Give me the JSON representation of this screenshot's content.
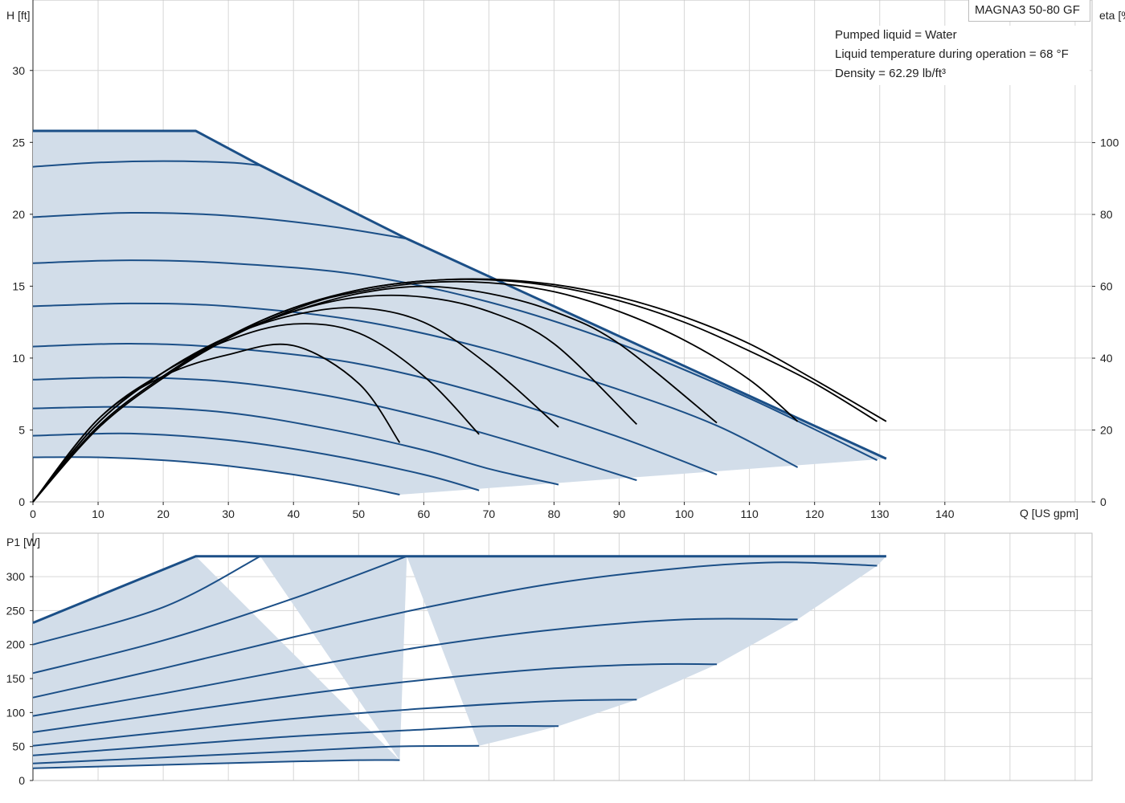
{
  "model_label": "MAGNA3 50-80 GF",
  "notes": {
    "line1": "Pumped liquid = Water",
    "line2": "Liquid temperature during operation = 68 °F",
    "line3": "Density = 62.29 lb/ft³"
  },
  "colors": {
    "curve": "#1b4f87",
    "fill": "#d2dde9",
    "efficiency": "#000000",
    "grid": "#d6d6d6",
    "frame": "#bdbdbd"
  },
  "chart_data": [
    {
      "type": "line",
      "title": "",
      "xlabel": "Q [US gpm]",
      "ylabel": "H [ft]",
      "ylabel_right": "eta [%]",
      "xlim": [
        0,
        162.6
      ],
      "ylim": [
        0,
        34.9
      ],
      "y2lim": [
        0,
        139.7
      ],
      "x_ticks": [
        0,
        10,
        20,
        30,
        40,
        50,
        60,
        70,
        80,
        90,
        100,
        110,
        120,
        130,
        140
      ],
      "y_ticks": [
        0,
        5,
        10,
        15,
        20,
        25,
        30
      ],
      "y2_ticks": [
        0,
        20,
        40,
        60,
        80,
        100
      ],
      "grid": true,
      "head_envelope_max": [
        [
          0,
          25.8
        ],
        [
          25,
          25.8
        ],
        [
          34.9,
          23.4
        ],
        [
          57.4,
          18.3
        ],
        [
          131,
          3.0
        ]
      ],
      "head_min_curve": [
        [
          0,
          3.1
        ],
        [
          10,
          3.1
        ],
        [
          20,
          2.9
        ],
        [
          30,
          2.5
        ],
        [
          40,
          1.9
        ],
        [
          50,
          1.1
        ],
        [
          56.3,
          0.5
        ]
      ],
      "head_series": [
        {
          "values": [
            [
              0,
              3.1
            ],
            [
              10,
              3.1
            ],
            [
              20,
              2.9
            ],
            [
              30,
              2.5
            ],
            [
              40,
              1.9
            ],
            [
              50,
              1.1
            ],
            [
              56.3,
              0.5
            ]
          ]
        },
        {
          "values": [
            [
              0,
              4.6
            ],
            [
              15,
              4.75
            ],
            [
              30,
              4.3
            ],
            [
              45,
              3.3
            ],
            [
              60,
              1.9
            ],
            [
              68.5,
              0.8
            ]
          ]
        },
        {
          "values": [
            [
              0,
              6.5
            ],
            [
              15,
              6.6
            ],
            [
              30,
              6.2
            ],
            [
              45,
              5.1
            ],
            [
              60,
              3.6
            ],
            [
              70,
              2.3
            ],
            [
              80.7,
              1.2
            ]
          ]
        },
        {
          "values": [
            [
              0,
              8.5
            ],
            [
              15,
              8.65
            ],
            [
              30,
              8.35
            ],
            [
              45,
              7.4
            ],
            [
              60,
              5.9
            ],
            [
              75,
              4.0
            ],
            [
              92.7,
              1.5
            ]
          ]
        },
        {
          "values": [
            [
              0,
              10.8
            ],
            [
              15,
              11.0
            ],
            [
              30,
              10.7
            ],
            [
              50,
              9.6
            ],
            [
              70,
              7.4
            ],
            [
              90,
              4.5
            ],
            [
              105,
              1.9
            ]
          ]
        },
        {
          "values": [
            [
              0,
              13.6
            ],
            [
              15,
              13.8
            ],
            [
              30,
              13.6
            ],
            [
              50,
              12.6
            ],
            [
              70,
              10.6
            ],
            [
              90,
              7.8
            ],
            [
              105,
              5.3
            ],
            [
              117.4,
              2.4
            ]
          ]
        },
        {
          "values": [
            [
              0,
              16.6
            ],
            [
              15,
              16.8
            ],
            [
              30,
              16.6
            ],
            [
              50,
              15.8
            ],
            [
              70,
              13.9
            ],
            [
              90,
              11.0
            ],
            [
              110,
              7.2
            ],
            [
              129.6,
              2.9
            ]
          ]
        },
        {
          "values": [
            [
              0,
              19.8
            ],
            [
              15,
              20.1
            ],
            [
              30,
              19.9
            ],
            [
              45,
              19.2
            ],
            [
              57.4,
              18.3
            ]
          ]
        },
        {
          "values": [
            [
              0,
              23.3
            ],
            [
              10,
              23.6
            ],
            [
              20,
              23.7
            ],
            [
              30,
              23.6
            ],
            [
              34.9,
              23.4
            ]
          ]
        }
      ],
      "efficiency_series": [
        {
          "values": [
            [
              0,
              0
            ],
            [
              10,
              23
            ],
            [
              20,
              35
            ],
            [
              30,
              41
            ],
            [
              40,
              43.5
            ],
            [
              50,
              33
            ],
            [
              56.3,
              16.5
            ]
          ]
        },
        {
          "values": [
            [
              0,
              0
            ],
            [
              10,
              23
            ],
            [
              20,
              36
            ],
            [
              30,
              45
            ],
            [
              40,
              49.5
            ],
            [
              50,
              47
            ],
            [
              60,
              35
            ],
            [
              68.5,
              18.8
            ]
          ]
        },
        {
          "values": [
            [
              0,
              0
            ],
            [
              10,
              22
            ],
            [
              20,
              36
            ],
            [
              30,
              46
            ],
            [
              40,
              52
            ],
            [
              50,
              54
            ],
            [
              60,
              50
            ],
            [
              70,
              38
            ],
            [
              80.7,
              20.8
            ]
          ]
        },
        {
          "values": [
            [
              0,
              0
            ],
            [
              10,
              22
            ],
            [
              20,
              36
            ],
            [
              30,
              46
            ],
            [
              40,
              53
            ],
            [
              50,
              57
            ],
            [
              60,
              57
            ],
            [
              70,
              53
            ],
            [
              80,
              44
            ],
            [
              92.7,
              21.6
            ]
          ]
        },
        {
          "values": [
            [
              0,
              0
            ],
            [
              10,
              22
            ],
            [
              20,
              36
            ],
            [
              30,
              46
            ],
            [
              40,
              53
            ],
            [
              50,
              58
            ],
            [
              60,
              60
            ],
            [
              70,
              58
            ],
            [
              80,
              53
            ],
            [
              90,
              44
            ],
            [
              105,
              22.0
            ]
          ]
        },
        {
          "values": [
            [
              0,
              0
            ],
            [
              10,
              21
            ],
            [
              20,
              35
            ],
            [
              30,
              46
            ],
            [
              40,
              54
            ],
            [
              50,
              58.5
            ],
            [
              60,
              61
            ],
            [
              70,
              61
            ],
            [
              80,
              58.5
            ],
            [
              90,
              53
            ],
            [
              100,
              45
            ],
            [
              110,
              34
            ],
            [
              117.4,
              22.4
            ]
          ]
        },
        {
          "values": [
            [
              0,
              0
            ],
            [
              10,
              21
            ],
            [
              20,
              35
            ],
            [
              30,
              46
            ],
            [
              40,
              54
            ],
            [
              50,
              59
            ],
            [
              60,
              61.5
            ],
            [
              70,
              61.8
            ],
            [
              80,
              60
            ],
            [
              90,
              56
            ],
            [
              100,
              50
            ],
            [
              110,
              42
            ],
            [
              120,
              33
            ],
            [
              129.6,
              22.4
            ]
          ]
        },
        {
          "values": [
            [
              0,
              0
            ],
            [
              10,
              20.5
            ],
            [
              20,
              34.5
            ],
            [
              30,
              45.5
            ],
            [
              40,
              53.5
            ],
            [
              50,
              59
            ],
            [
              60,
              61.5
            ],
            [
              70,
              62
            ],
            [
              80,
              60.5
            ],
            [
              90,
              57
            ],
            [
              100,
              51.5
            ],
            [
              110,
              44
            ],
            [
              120,
              34
            ],
            [
              131,
              22.4
            ]
          ]
        }
      ]
    },
    {
      "type": "line",
      "title": "",
      "xlabel": "",
      "ylabel": "P1 [W]",
      "xlim": [
        0,
        162.6
      ],
      "ylim": [
        0,
        363.9
      ],
      "y_ticks": [
        0,
        50,
        100,
        150,
        200,
        250,
        300
      ],
      "grid": true,
      "power_envelope_max": [
        [
          0,
          232
        ],
        [
          25,
          330
        ],
        [
          131,
          330
        ]
      ],
      "power_series": [
        {
          "values": [
            [
              0,
              232
            ],
            [
              25,
              330
            ]
          ]
        },
        {
          "values": [
            [
              0,
              200
            ],
            [
              20,
              255
            ],
            [
              34.9,
              330
            ]
          ]
        },
        {
          "values": [
            [
              0,
              158
            ],
            [
              20,
              206
            ],
            [
              40,
              268
            ],
            [
              57.4,
              330
            ]
          ]
        },
        {
          "values": [
            [
              0,
              122
            ],
            [
              20,
              165
            ],
            [
              40,
              211
            ],
            [
              60,
              254
            ],
            [
              80,
              290
            ],
            [
              100,
              313
            ],
            [
              115,
              321
            ],
            [
              129.6,
              316
            ]
          ]
        },
        {
          "values": [
            [
              0,
              95
            ],
            [
              20,
              128
            ],
            [
              40,
              164
            ],
            [
              60,
              197
            ],
            [
              80,
              222
            ],
            [
              100,
              237
            ],
            [
              117.4,
              237
            ]
          ]
        },
        {
          "values": [
            [
              0,
              71
            ],
            [
              20,
              98
            ],
            [
              40,
              125
            ],
            [
              60,
              148
            ],
            [
              80,
              165
            ],
            [
              95,
              171
            ],
            [
              105,
              171
            ]
          ]
        },
        {
          "values": [
            [
              0,
              51
            ],
            [
              20,
              71
            ],
            [
              40,
              91
            ],
            [
              60,
              106
            ],
            [
              80,
              117
            ],
            [
              92.7,
              119
            ]
          ]
        },
        {
          "values": [
            [
              0,
              37
            ],
            [
              20,
              51
            ],
            [
              40,
              65
            ],
            [
              60,
              75
            ],
            [
              70,
              80
            ],
            [
              80.7,
              80
            ]
          ]
        },
        {
          "values": [
            [
              0,
              25
            ],
            [
              20,
              34
            ],
            [
              40,
              43
            ],
            [
              55,
              50
            ],
            [
              68.5,
              51
            ]
          ]
        },
        {
          "values": [
            [
              0,
              18
            ],
            [
              20,
              23
            ],
            [
              40,
              28
            ],
            [
              50,
              30
            ],
            [
              56.3,
              30
            ]
          ]
        }
      ]
    }
  ]
}
